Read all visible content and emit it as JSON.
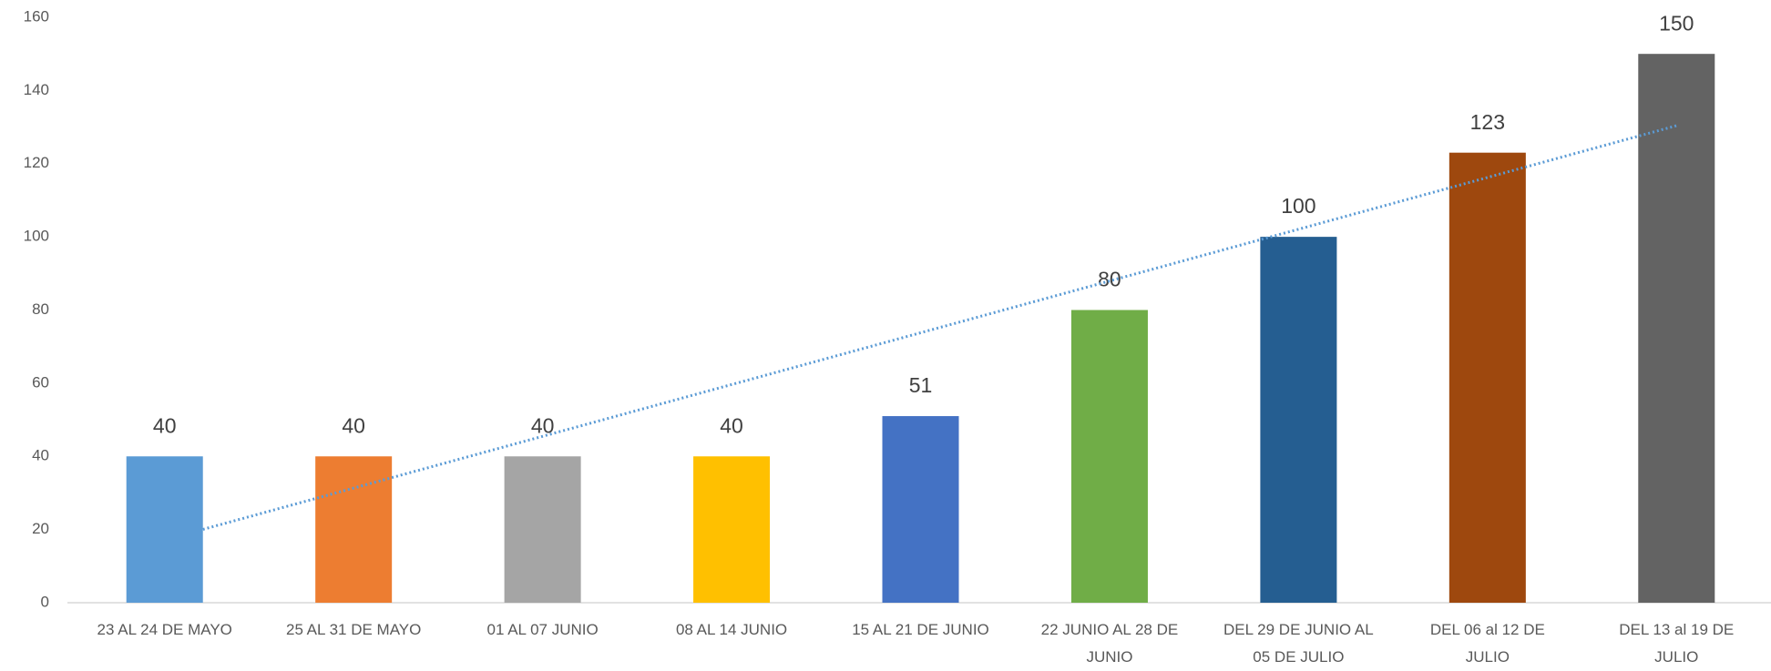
{
  "chart_data": {
    "type": "bar",
    "categories": [
      "23 AL 24 DE MAYO",
      "25 AL 31 DE MAYO",
      "01 AL 07 JUNIO",
      "08 AL 14 JUNIO",
      "15 AL 21 DE JUNIO",
      "22 JUNIO AL 28 DE JUNIO",
      "DEL 29 DE JUNIO AL 05 DE JULIO",
      "DEL 06 al 12 DE JULIO",
      "DEL 13 al 19 DE JULIO"
    ],
    "values": [
      40,
      40,
      40,
      40,
      51,
      80,
      100,
      123,
      150
    ],
    "colors": [
      "#5b9bd5",
      "#ed7d31",
      "#a5a5a5",
      "#ffc000",
      "#4472c4",
      "#70ad47",
      "#255e91",
      "#9e480e",
      "#636363"
    ],
    "ylim": [
      0,
      160
    ],
    "yticks": [
      0,
      20,
      40,
      60,
      80,
      100,
      120,
      140,
      160
    ],
    "grid": false,
    "trendline": "linear",
    "trendline_color": "#5b9bd5"
  }
}
